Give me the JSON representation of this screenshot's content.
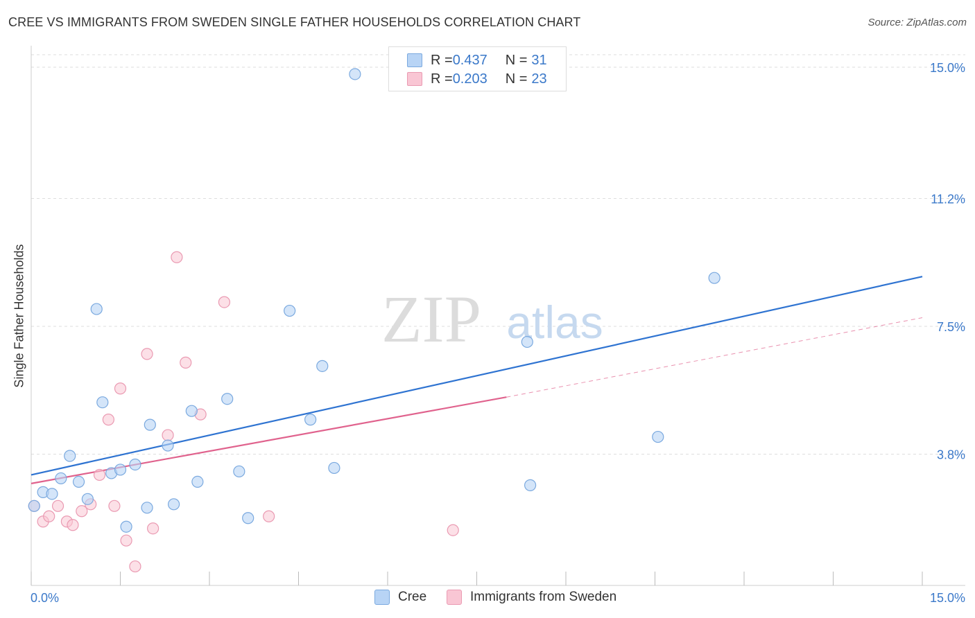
{
  "title": "CREE VS IMMIGRANTS FROM SWEDEN SINGLE FATHER HOUSEHOLDS CORRELATION CHART",
  "source": "Source: ZipAtlas.com",
  "watermark": {
    "zip": "ZIP",
    "atlas": "atlas"
  },
  "legend": {
    "rows": [
      {
        "r_label": "R = ",
        "r_value": "0.437",
        "n_label": "N = ",
        "n_value": "31"
      },
      {
        "r_label": "R = ",
        "r_value": "0.203",
        "n_label": "N = ",
        "n_value": "23"
      }
    ],
    "bottom": [
      "Cree",
      "Immigrants from Sweden"
    ]
  },
  "colors": {
    "cree_fill": "#b8d4f5",
    "cree_stroke": "#7aa9df",
    "cree_line": "#2e73d1",
    "sweden_fill": "#f9c6d4",
    "sweden_stroke": "#ea9ab2",
    "sweden_line": "#e0628d",
    "grid": "#dddddd",
    "axis_text": "#3a78c9"
  },
  "chart_data": {
    "type": "scatter",
    "title": "CREE VS IMMIGRANTS FROM SWEDEN SINGLE FATHER HOUSEHOLDS CORRELATION CHART",
    "xlabel": "",
    "ylabel": "Single Father Households",
    "xlim": [
      0,
      15
    ],
    "ylim": [
      0,
      15
    ],
    "x_tick_labels": [
      "0.0%",
      "15.0%"
    ],
    "y_ticks": [
      3.8,
      7.5,
      11.2,
      15.0
    ],
    "y_tick_labels": [
      "3.8%",
      "7.5%",
      "11.2%",
      "15.0%"
    ],
    "grid": true,
    "legend_position": "top-center",
    "series": [
      {
        "name": "Cree",
        "r": 0.437,
        "n": 31,
        "points": [
          [
            0.05,
            2.3
          ],
          [
            0.2,
            2.7
          ],
          [
            0.35,
            2.65
          ],
          [
            0.5,
            3.1
          ],
          [
            0.65,
            3.75
          ],
          [
            0.8,
            3.0
          ],
          [
            0.95,
            2.5
          ],
          [
            1.1,
            8.0
          ],
          [
            1.2,
            5.3
          ],
          [
            1.35,
            3.25
          ],
          [
            1.5,
            3.35
          ],
          [
            1.6,
            1.7
          ],
          [
            1.75,
            3.5
          ],
          [
            1.95,
            2.25
          ],
          [
            2.0,
            4.65
          ],
          [
            2.3,
            4.05
          ],
          [
            2.4,
            2.35
          ],
          [
            2.7,
            5.05
          ],
          [
            2.8,
            3.0
          ],
          [
            3.3,
            5.4
          ],
          [
            3.5,
            3.3
          ],
          [
            3.65,
            1.95
          ],
          [
            4.35,
            7.95
          ],
          [
            4.7,
            4.8
          ],
          [
            4.9,
            6.35
          ],
          [
            5.1,
            3.4
          ],
          [
            5.45,
            14.8
          ],
          [
            8.35,
            7.05
          ],
          [
            8.4,
            2.9
          ],
          [
            10.55,
            4.3
          ],
          [
            11.5,
            8.9
          ]
        ],
        "trend": {
          "x": [
            0,
            15
          ],
          "y": [
            3.2,
            8.94
          ]
        }
      },
      {
        "name": "Immigrants from Sweden",
        "r": 0.203,
        "n": 23,
        "points": [
          [
            0.05,
            2.3
          ],
          [
            0.2,
            1.85
          ],
          [
            0.3,
            2.0
          ],
          [
            0.45,
            2.3
          ],
          [
            0.6,
            1.85
          ],
          [
            0.7,
            1.75
          ],
          [
            0.85,
            2.15
          ],
          [
            1.0,
            2.35
          ],
          [
            1.15,
            3.2
          ],
          [
            1.3,
            4.8
          ],
          [
            1.4,
            2.3
          ],
          [
            1.5,
            5.7
          ],
          [
            1.6,
            1.3
          ],
          [
            1.75,
            0.55
          ],
          [
            1.95,
            6.7
          ],
          [
            2.05,
            1.65
          ],
          [
            2.3,
            4.35
          ],
          [
            2.45,
            9.5
          ],
          [
            2.6,
            6.45
          ],
          [
            2.85,
            4.95
          ],
          [
            3.25,
            8.2
          ],
          [
            4.0,
            2.0
          ],
          [
            7.1,
            1.6
          ]
        ],
        "trend_solid": {
          "x": [
            0,
            8.0
          ],
          "y": [
            2.95,
            5.45
          ]
        },
        "trend_dashed": {
          "x": [
            8.0,
            15
          ],
          "y": [
            5.45,
            7.75
          ]
        }
      }
    ]
  }
}
